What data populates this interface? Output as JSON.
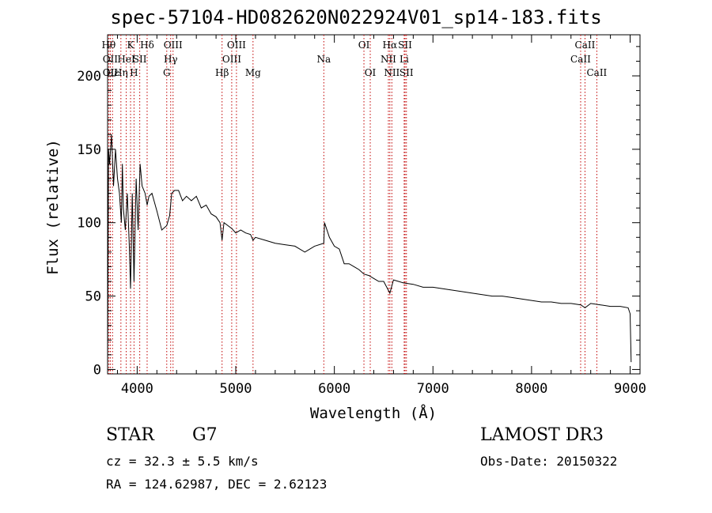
{
  "chart_data": {
    "type": "line",
    "title": "spec-57104-HD082620N022924V01_sp14-183.fits",
    "xlabel": "Wavelength (Å)",
    "ylabel": "Flux (relative)",
    "xlim": [
      3700,
      9100
    ],
    "ylim": [
      -3,
      228
    ],
    "xticks": [
      4000,
      5000,
      6000,
      7000,
      8000,
      9000
    ],
    "yticks": [
      0,
      50,
      100,
      150,
      200
    ],
    "grid": false,
    "series": [
      {
        "x": [
          3700,
          3710,
          3720,
          3740,
          3760,
          3780,
          3800,
          3820,
          3840,
          3850,
          3860,
          3880,
          3900,
          3920,
          3933,
          3950,
          3968,
          3990,
          4010,
          4030,
          4050,
          4080,
          4101,
          4120,
          4150,
          4200,
          4250,
          4300,
          4330,
          4350,
          4380,
          4420,
          4460,
          4500,
          4550,
          4600,
          4650,
          4700,
          4750,
          4800,
          4840,
          4861,
          4880,
          4920,
          4960,
          5000,
          5050,
          5100,
          5150,
          5175,
          5200,
          5300,
          5400,
          5500,
          5600,
          5700,
          5800,
          5893,
          5900,
          5950,
          6000,
          6050,
          6100,
          6150,
          6200,
          6250,
          6300,
          6350,
          6400,
          6450,
          6500,
          6563,
          6600,
          6650,
          6700,
          6800,
          6900,
          7000,
          7100,
          7200,
          7300,
          7400,
          7500,
          7600,
          7700,
          7800,
          7900,
          8000,
          8100,
          8200,
          8300,
          8400,
          8500,
          8542,
          8600,
          8700,
          8800,
          8900,
          8980,
          9000,
          9010
        ],
        "y": [
          0,
          150,
          140,
          160,
          125,
          150,
          130,
          120,
          100,
          140,
          110,
          95,
          120,
          85,
          55,
          120,
          60,
          130,
          95,
          140,
          125,
          120,
          112,
          118,
          120,
          108,
          95,
          98,
          105,
          120,
          122,
          122,
          115,
          118,
          115,
          118,
          110,
          112,
          106,
          104,
          100,
          88,
          100,
          98,
          96,
          93,
          95,
          93,
          92,
          88,
          90,
          88,
          86,
          85,
          84,
          80,
          84,
          86,
          100,
          90,
          84,
          82,
          72,
          72,
          70,
          68,
          65,
          64,
          62,
          60,
          60,
          52,
          61,
          60,
          59,
          58,
          56,
          56,
          55,
          54,
          53,
          52,
          51,
          50,
          50,
          49,
          48,
          47,
          46,
          46,
          45,
          45,
          44,
          42,
          45,
          44,
          43,
          43,
          42,
          38,
          5
        ]
      }
    ],
    "lines": [
      {
        "x": 3711,
        "label": "Hθ",
        "row": 0
      },
      {
        "x": 3727,
        "label": "OII",
        "row": 1
      },
      {
        "x": 3727,
        "label": "OII",
        "row": 2
      },
      {
        "x": 3750,
        "label": "Hε",
        "row": 2
      },
      {
        "x": 3835,
        "label": "Hη",
        "row": 2
      },
      {
        "x": 3889,
        "label": "HeI",
        "row": 1
      },
      {
        "x": 3933,
        "label": "K",
        "row": 0
      },
      {
        "x": 3968,
        "label": "H",
        "row": 2
      },
      {
        "x": 4026,
        "label": "SII",
        "row": 1
      },
      {
        "x": 4101,
        "label": "Hδ",
        "row": 0
      },
      {
        "x": 4300,
        "label": "G",
        "row": 2
      },
      {
        "x": 4340,
        "label": "Hγ",
        "row": 1
      },
      {
        "x": 4364,
        "label": "OIII",
        "row": 0
      },
      {
        "x": 4861,
        "label": "Hβ",
        "row": 2
      },
      {
        "x": 4959,
        "label": "OIII",
        "row": 1
      },
      {
        "x": 5007,
        "label": "OIII",
        "row": 0
      },
      {
        "x": 5175,
        "label": "Mg",
        "row": 2
      },
      {
        "x": 5893,
        "label": "Na",
        "row": 1
      },
      {
        "x": 6300,
        "label": "OI",
        "row": 0
      },
      {
        "x": 6364,
        "label": "OI",
        "row": 2
      },
      {
        "x": 6548,
        "label": "NII",
        "row": 1
      },
      {
        "x": 6563,
        "label": "Hα",
        "row": 0
      },
      {
        "x": 6583,
        "label": "NII",
        "row": 2
      },
      {
        "x": 6708,
        "label": "Li",
        "row": 1
      },
      {
        "x": 6717,
        "label": "SII",
        "row": 0
      },
      {
        "x": 6731,
        "label": "SII",
        "row": 2
      },
      {
        "x": 8498,
        "label": "CaII",
        "row": 1
      },
      {
        "x": 8542,
        "label": "CaII",
        "row": 0
      },
      {
        "x": 8662,
        "label": "CaII",
        "row": 2
      }
    ]
  },
  "info": {
    "object_type": "STAR",
    "spectral_class": "G7",
    "cz": "cz = 32.3 ± 5.5 km/s",
    "coords": "RA = 124.62987, DEC =   2.62123",
    "survey": "LAMOST DR3",
    "obs_date": "Obs-Date: 20150322"
  }
}
